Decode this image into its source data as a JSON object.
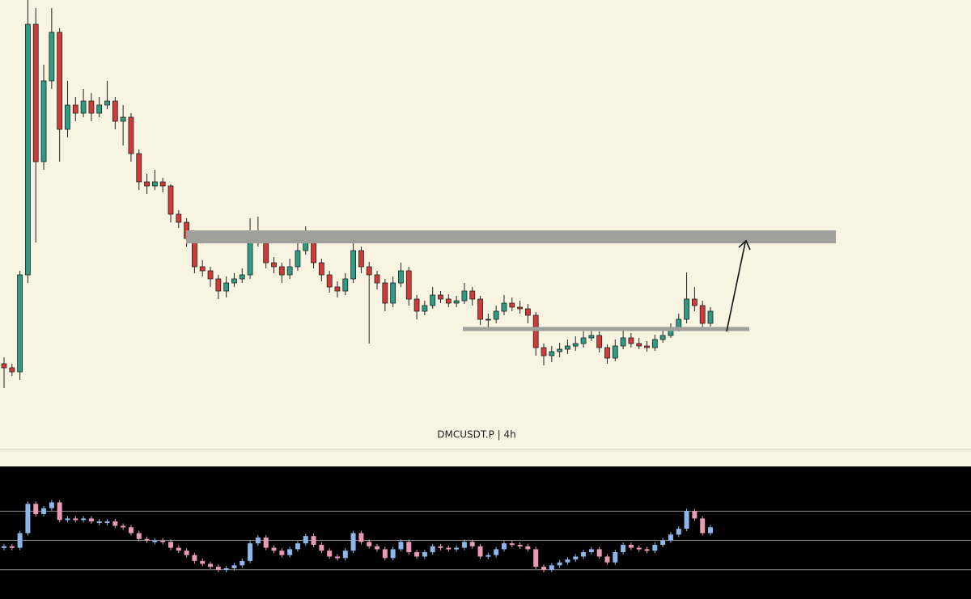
{
  "chart_data": [
    {
      "type": "candlestick",
      "title": "DMCUSDT.P | 4h",
      "ylim": [
        40,
        600
      ],
      "up_color": "#2e9c83",
      "down_color": "#d23a3a",
      "ohlc": [
        [
          150,
          158,
          120,
          145
        ],
        [
          145,
          150,
          135,
          140
        ],
        [
          140,
          265,
          130,
          260
        ],
        [
          260,
          600,
          250,
          570
        ],
        [
          570,
          590,
          300,
          400
        ],
        [
          400,
          520,
          390,
          500
        ],
        [
          500,
          590,
          490,
          560
        ],
        [
          560,
          565,
          400,
          440
        ],
        [
          440,
          500,
          430,
          470
        ],
        [
          470,
          480,
          450,
          460
        ],
        [
          460,
          490,
          455,
          475
        ],
        [
          475,
          485,
          450,
          460
        ],
        [
          460,
          480,
          455,
          470
        ],
        [
          470,
          500,
          465,
          475
        ],
        [
          475,
          480,
          440,
          450
        ],
        [
          450,
          470,
          420,
          455
        ],
        [
          455,
          460,
          400,
          410
        ],
        [
          410,
          415,
          365,
          375
        ],
        [
          375,
          385,
          360,
          370
        ],
        [
          370,
          390,
          365,
          375
        ],
        [
          375,
          380,
          362,
          370
        ],
        [
          370,
          372,
          325,
          335
        ],
        [
          335,
          340,
          318,
          325
        ],
        [
          325,
          330,
          295,
          305
        ],
        [
          305,
          310,
          262,
          270
        ],
        [
          270,
          278,
          258,
          265
        ],
        [
          265,
          270,
          245,
          255
        ],
        [
          255,
          260,
          230,
          240
        ],
        [
          240,
          258,
          232,
          250
        ],
        [
          250,
          262,
          245,
          255
        ],
        [
          255,
          268,
          250,
          260
        ],
        [
          260,
          330,
          255,
          300
        ],
        [
          300,
          332,
          295,
          310
        ],
        [
          310,
          315,
          268,
          275
        ],
        [
          275,
          282,
          262,
          270
        ],
        [
          270,
          275,
          250,
          260
        ],
        [
          260,
          280,
          255,
          270
        ],
        [
          270,
          300,
          265,
          290
        ],
        [
          290,
          320,
          285,
          305
        ],
        [
          305,
          310,
          268,
          275
        ],
        [
          275,
          280,
          252,
          260
        ],
        [
          260,
          265,
          238,
          245
        ],
        [
          245,
          252,
          232,
          240
        ],
        [
          240,
          262,
          235,
          255
        ],
        [
          255,
          305,
          250,
          290
        ],
        [
          290,
          295,
          262,
          270
        ],
        [
          270,
          276,
          175,
          260
        ],
        [
          260,
          265,
          242,
          250
        ],
        [
          250,
          255,
          215,
          225
        ],
        [
          225,
          258,
          220,
          250
        ],
        [
          250,
          275,
          245,
          265
        ],
        [
          265,
          270,
          222,
          230
        ],
        [
          230,
          235,
          205,
          215
        ],
        [
          215,
          228,
          210,
          222
        ],
        [
          222,
          245,
          218,
          235
        ],
        [
          235,
          240,
          225,
          230
        ],
        [
          230,
          236,
          220,
          225
        ],
        [
          225,
          234,
          220,
          228
        ],
        [
          228,
          250,
          224,
          240
        ],
        [
          240,
          245,
          222,
          230
        ],
        [
          230,
          234,
          198,
          205
        ],
        [
          205,
          212,
          195,
          205
        ],
        [
          205,
          222,
          200,
          215
        ],
        [
          215,
          235,
          210,
          225
        ],
        [
          225,
          232,
          215,
          220
        ],
        [
          220,
          228,
          212,
          218
        ],
        [
          218,
          224,
          200,
          210
        ],
        [
          210,
          214,
          160,
          170
        ],
        [
          170,
          175,
          148,
          160
        ],
        [
          160,
          172,
          152,
          165
        ],
        [
          165,
          176,
          158,
          168
        ],
        [
          168,
          180,
          162,
          172
        ],
        [
          172,
          184,
          166,
          175
        ],
        [
          175,
          190,
          170,
          182
        ],
        [
          182,
          195,
          178,
          185
        ],
        [
          185,
          190,
          164,
          170
        ],
        [
          170,
          174,
          150,
          157
        ],
        [
          157,
          180,
          153,
          172
        ],
        [
          172,
          195,
          168,
          182
        ],
        [
          182,
          188,
          170,
          175
        ],
        [
          175,
          182,
          168,
          172
        ],
        [
          172,
          178,
          165,
          170
        ],
        [
          170,
          186,
          166,
          180
        ],
        [
          180,
          192,
          176,
          185
        ],
        [
          185,
          200,
          182,
          195
        ],
        [
          195,
          212,
          190,
          205
        ],
        [
          205,
          263,
          200,
          230
        ],
        [
          230,
          245,
          215,
          222
        ],
        [
          222,
          228,
          192,
          200
        ],
        [
          200,
          220,
          196,
          215
        ]
      ]
    },
    {
      "type": "oscillator",
      "ylim": [
        10,
        100
      ],
      "yticks": [
        30,
        50,
        70
      ],
      "grid": true,
      "up_color": "#8db6ea",
      "down_color": "#ea9bb4",
      "values": [
        46,
        45,
        55,
        75,
        68,
        72,
        76,
        64,
        65,
        64,
        65,
        63,
        63,
        63,
        60,
        59,
        55,
        51,
        50,
        50,
        49,
        45,
        43,
        40,
        36,
        34,
        32,
        30,
        31,
        33,
        36,
        48,
        52,
        45,
        43,
        40,
        44,
        48,
        53,
        47,
        43,
        39,
        38,
        43,
        55,
        49,
        46,
        44,
        38,
        44,
        49,
        42,
        39,
        42,
        46,
        45,
        44,
        45,
        49,
        46,
        39,
        40,
        44,
        48,
        47,
        46,
        44,
        32,
        30,
        33,
        35,
        37,
        39,
        42,
        44,
        39,
        35,
        42,
        47,
        45,
        44,
        43,
        47,
        50,
        54,
        58,
        70,
        65,
        55,
        59
      ]
    }
  ]
}
